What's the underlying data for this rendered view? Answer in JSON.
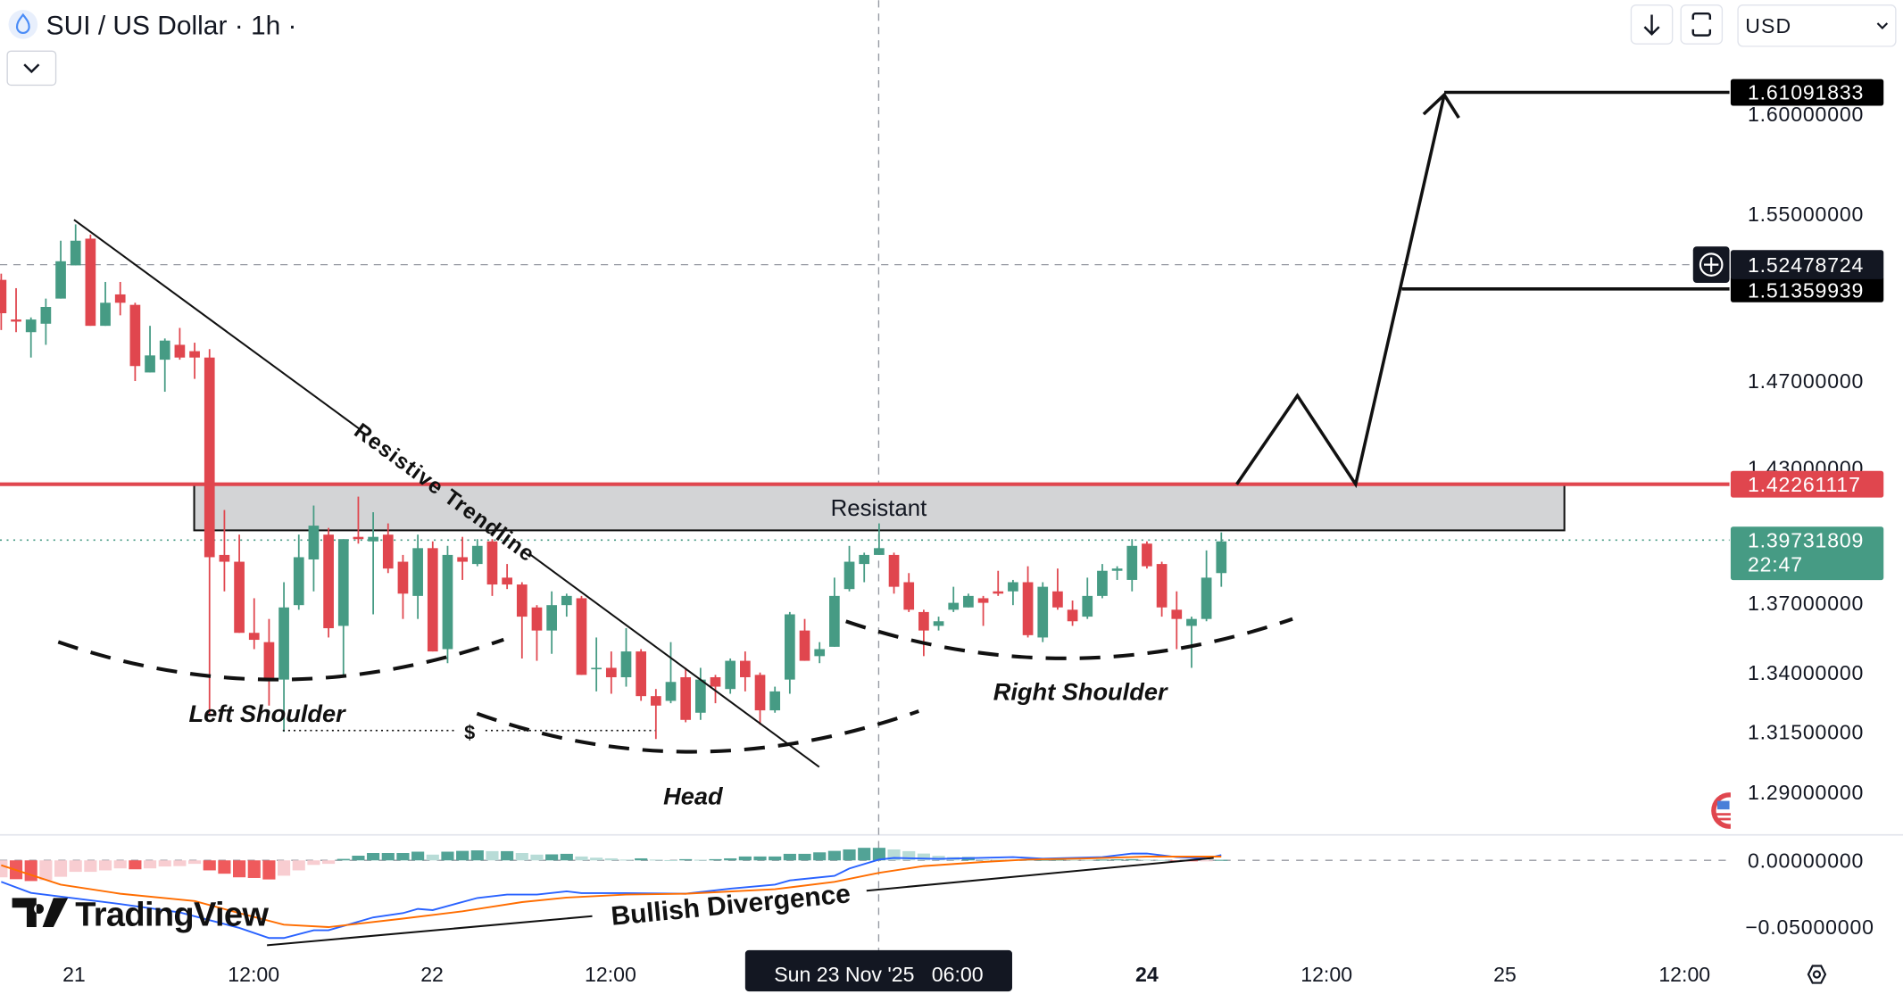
{
  "header": {
    "title": "SUI / US Dollar · 1h ·",
    "symbol_icon": "sui-drop-icon",
    "collapse_icon": "chevron-down-icon"
  },
  "toolbar": {
    "download_icon": "arrow-down-icon",
    "fullscreen_icon": "fullscreen-icon",
    "currency": "USD"
  },
  "logo": "TradingView",
  "annotations": {
    "trendline": "Resistive Trendline",
    "zone": "Resistant",
    "left_shoulder": "Left Shoulder",
    "head": "Head",
    "right_shoulder": "Right Shoulder",
    "dollar": "$",
    "divergence": "Bullish Divergence"
  },
  "price_labels": {
    "target": "1.61091833",
    "crosshair": "1.52478724",
    "breakout": "1.51359939",
    "resistance": "1.42261117",
    "current": "1.39731809",
    "countdown": "22:47"
  },
  "time_axis": {
    "ticks": [
      "21",
      "12:00",
      "22",
      "12:00",
      "24",
      "12:00",
      "25",
      "12:00"
    ],
    "crosshair": "Sun 23 Nov '25   06:00",
    "settings_icon": "gear-icon"
  },
  "colors": {
    "up": "#469b84",
    "down": "#e0464e",
    "resistance_line": "#e0464e",
    "zone_fill": "#d3d4d6",
    "macd_line": "#2962ff",
    "signal_line": "#ff6d00",
    "hist_up_strong": "#52a396",
    "hist_up_weak": "#b8dcd7",
    "hist_down_strong": "#ef5a5c",
    "hist_down_weak": "#f8cdd1",
    "label_dark": "#131722"
  },
  "chart_data": {
    "type": "candlestick",
    "interval": "1h",
    "y_scale": "log",
    "price_ticks": [
      "1.60000000",
      "1.55000000",
      "1.47000000",
      "1.43000000",
      "1.37000000",
      "1.34000000",
      "1.31500000",
      "1.29000000"
    ],
    "candles_ohlc": [
      [
        1.518,
        1.521,
        1.494,
        1.502
      ],
      [
        1.499,
        1.514,
        1.493,
        1.498
      ],
      [
        1.493,
        1.5,
        1.481,
        1.499
      ],
      [
        1.497,
        1.509,
        1.487,
        1.505
      ],
      [
        1.509,
        1.537,
        1.509,
        1.527
      ],
      [
        1.525,
        1.545,
        1.525,
        1.537
      ],
      [
        1.538,
        1.54,
        1.496,
        1.496
      ],
      [
        1.496,
        1.517,
        1.496,
        1.507
      ],
      [
        1.511,
        1.517,
        1.501,
        1.507
      ],
      [
        1.506,
        1.507,
        1.47,
        1.477
      ],
      [
        1.474,
        1.496,
        1.474,
        1.482
      ],
      [
        1.48,
        1.49,
        1.465,
        1.489
      ],
      [
        1.487,
        1.495,
        1.48,
        1.481
      ],
      [
        1.484,
        1.488,
        1.471,
        1.481
      ],
      [
        1.481,
        1.485,
        1.322,
        1.39
      ],
      [
        1.391,
        1.411,
        1.375,
        1.388
      ],
      [
        1.388,
        1.4,
        1.357,
        1.357
      ],
      [
        1.357,
        1.372,
        1.35,
        1.354
      ],
      [
        1.353,
        1.363,
        1.326,
        1.337
      ],
      [
        1.337,
        1.379,
        1.315,
        1.368
      ],
      [
        1.369,
        1.4,
        1.367,
        1.39
      ],
      [
        1.389,
        1.413,
        1.375,
        1.404
      ],
      [
        1.4,
        1.403,
        1.355,
        1.359
      ],
      [
        1.36,
        1.398,
        1.338,
        1.398
      ],
      [
        1.399,
        1.417,
        1.396,
        1.398
      ],
      [
        1.397,
        1.41,
        1.365,
        1.399
      ],
      [
        1.4,
        1.405,
        1.383,
        1.385
      ],
      [
        1.388,
        1.391,
        1.363,
        1.374
      ],
      [
        1.373,
        1.4,
        1.363,
        1.394
      ],
      [
        1.394,
        1.397,
        1.349,
        1.349
      ],
      [
        1.35,
        1.395,
        1.344,
        1.391
      ],
      [
        1.39,
        1.399,
        1.38,
        1.388
      ],
      [
        1.387,
        1.398,
        1.386,
        1.395
      ],
      [
        1.397,
        1.398,
        1.373,
        1.378
      ],
      [
        1.381,
        1.387,
        1.376,
        1.378
      ],
      [
        1.378,
        1.379,
        1.346,
        1.364
      ],
      [
        1.368,
        1.369,
        1.345,
        1.358
      ],
      [
        1.358,
        1.375,
        1.348,
        1.369
      ],
      [
        1.369,
        1.374,
        1.364,
        1.373
      ],
      [
        1.372,
        1.373,
        1.339,
        1.339
      ],
      [
        1.342,
        1.355,
        1.332,
        1.342
      ],
      [
        1.342,
        1.349,
        1.331,
        1.338
      ],
      [
        1.338,
        1.359,
        1.334,
        1.349
      ],
      [
        1.349,
        1.35,
        1.328,
        1.33
      ],
      [
        1.33,
        1.333,
        1.312,
        1.326
      ],
      [
        1.328,
        1.353,
        1.327,
        1.336
      ],
      [
        1.338,
        1.342,
        1.319,
        1.32
      ],
      [
        1.323,
        1.342,
        1.32,
        1.337
      ],
      [
        1.338,
        1.339,
        1.327,
        1.334
      ],
      [
        1.333,
        1.346,
        1.331,
        1.345
      ],
      [
        1.345,
        1.349,
        1.332,
        1.338
      ],
      [
        1.339,
        1.34,
        1.318,
        1.324
      ],
      [
        1.324,
        1.334,
        1.323,
        1.332
      ],
      [
        1.337,
        1.366,
        1.331,
        1.365
      ],
      [
        1.358,
        1.363,
        1.345,
        1.345
      ],
      [
        1.347,
        1.353,
        1.344,
        1.35
      ],
      [
        1.351,
        1.381,
        1.351,
        1.373
      ],
      [
        1.376,
        1.395,
        1.375,
        1.388
      ],
      [
        1.387,
        1.392,
        1.379,
        1.391
      ],
      [
        1.391,
        1.405,
        1.391,
        1.394
      ],
      [
        1.391,
        1.392,
        1.374,
        1.377
      ],
      [
        1.379,
        1.383,
        1.366,
        1.367
      ],
      [
        1.366,
        1.367,
        1.347,
        1.358
      ],
      [
        1.36,
        1.364,
        1.358,
        1.362
      ],
      [
        1.367,
        1.377,
        1.366,
        1.37
      ],
      [
        1.368,
        1.374,
        1.368,
        1.373
      ],
      [
        1.372,
        1.373,
        1.36,
        1.37
      ],
      [
        1.375,
        1.384,
        1.373,
        1.374
      ],
      [
        1.375,
        1.38,
        1.369,
        1.379
      ],
      [
        1.379,
        1.386,
        1.355,
        1.356
      ],
      [
        1.355,
        1.379,
        1.353,
        1.377
      ],
      [
        1.375,
        1.385,
        1.367,
        1.368
      ],
      [
        1.367,
        1.371,
        1.36,
        1.362
      ],
      [
        1.364,
        1.381,
        1.363,
        1.373
      ],
      [
        1.373,
        1.387,
        1.372,
        1.384
      ],
      [
        1.384,
        1.386,
        1.38,
        1.385
      ],
      [
        1.38,
        1.398,
        1.375,
        1.395
      ],
      [
        1.396,
        1.397,
        1.385,
        1.386
      ],
      [
        1.387,
        1.388,
        1.364,
        1.368
      ],
      [
        1.367,
        1.375,
        1.35,
        1.363
      ],
      [
        1.36,
        1.364,
        1.342,
        1.363
      ],
      [
        1.363,
        1.393,
        1.362,
        1.381
      ],
      [
        1.383,
        1.401,
        1.377,
        1.397
      ]
    ],
    "levels": {
      "resistance": 1.42261117,
      "resistance_zone": [
        1.3995,
        1.42261117
      ],
      "current_price": 1.39731809,
      "projection_peak": 1.4625,
      "breakout": 1.51359939,
      "target": 1.61091833,
      "crosshair_price": 1.52478724,
      "neckline_low": 1.3155
    },
    "macd": {
      "ticks": [
        "0.00000000",
        "−0.05000000"
      ],
      "histogram": [
        -0.0127,
        -0.0141,
        -0.0155,
        -0.0149,
        -0.0123,
        -0.0086,
        -0.0086,
        -0.0075,
        -0.006,
        -0.0067,
        -0.006,
        -0.0046,
        -0.0043,
        -0.0026,
        -0.0075,
        -0.01,
        -0.0127,
        -0.0132,
        -0.0143,
        -0.0115,
        -0.0075,
        -0.0034,
        -0.0026,
        0.0011,
        0.0035,
        0.0055,
        0.0055,
        0.0055,
        0.0065,
        0.0043,
        0.0065,
        0.0071,
        0.0075,
        0.0069,
        0.0069,
        0.0055,
        0.0043,
        0.0045,
        0.0049,
        0.0029,
        0.002,
        0.0015,
        0.0006,
        0.0015,
        0.0006,
        0.0002,
        0.0009,
        0.0005,
        0.0009,
        0.0015,
        0.0029,
        0.0029,
        0.0029,
        0.0049,
        0.0049,
        0.006,
        0.0071,
        0.0082,
        0.0094,
        0.0094,
        0.0082,
        0.0069,
        0.0051,
        0.0034,
        0.0025,
        0.0025,
        0.0008,
        0.0006,
        0.0005,
        0.0004,
        0.0005,
        0.0006,
        0.0005,
        0.0004,
        0.0006,
        0.0008,
        0.0009,
        0.0006,
        0.0003,
        -0.0005,
        -0.0006,
        -0.0003,
        0.0004
      ],
      "macd_line_by_bar": [
        [
          0,
          -0.0161
        ],
        [
          2,
          -0.0244
        ],
        [
          8,
          -0.0327
        ],
        [
          12,
          -0.039
        ],
        [
          16,
          -0.0506
        ],
        [
          18,
          -0.0582
        ],
        [
          19,
          -0.0582
        ],
        [
          21,
          -0.0524
        ],
        [
          22,
          -0.0524
        ],
        [
          25,
          -0.0427
        ],
        [
          27,
          -0.0395
        ],
        [
          28,
          -0.0364
        ],
        [
          29,
          -0.0373
        ],
        [
          32,
          -0.0282
        ],
        [
          34,
          -0.0256
        ],
        [
          36,
          -0.0256
        ],
        [
          38,
          -0.0232
        ],
        [
          39,
          -0.0245
        ],
        [
          42,
          -0.0245
        ],
        [
          46,
          -0.025
        ],
        [
          49,
          -0.0212
        ],
        [
          52,
          -0.0182
        ],
        [
          53,
          -0.015
        ],
        [
          56,
          -0.0116
        ],
        [
          57,
          -0.0061
        ],
        [
          59,
          0.0006
        ],
        [
          60,
          0.0018
        ],
        [
          63,
          0.0011
        ],
        [
          68,
          0.0025
        ],
        [
          70,
          0.0013
        ],
        [
          74,
          0.0025
        ],
        [
          76,
          0.0051
        ],
        [
          77,
          0.0051
        ],
        [
          79,
          0.0025
        ],
        [
          81,
          0.0015
        ],
        [
          82,
          0.004
        ]
      ],
      "signal_line_by_bar": [
        [
          0,
          -0.0036
        ],
        [
          4,
          -0.0182
        ],
        [
          8,
          -0.025
        ],
        [
          13,
          -0.0305
        ],
        [
          16,
          -0.0395
        ],
        [
          19,
          -0.0482
        ],
        [
          22,
          -0.05
        ],
        [
          27,
          -0.0436
        ],
        [
          31,
          -0.0382
        ],
        [
          35,
          -0.0313
        ],
        [
          38,
          -0.0279
        ],
        [
          42,
          -0.0256
        ],
        [
          46,
          -0.025
        ],
        [
          52,
          -0.0216
        ],
        [
          56,
          -0.0161
        ],
        [
          59,
          -0.0094
        ],
        [
          62,
          -0.0043
        ],
        [
          66,
          -0.0012
        ],
        [
          69,
          0.0006
        ],
        [
          73,
          0.0015
        ],
        [
          77,
          0.0028
        ],
        [
          82,
          0.0028
        ]
      ]
    }
  }
}
